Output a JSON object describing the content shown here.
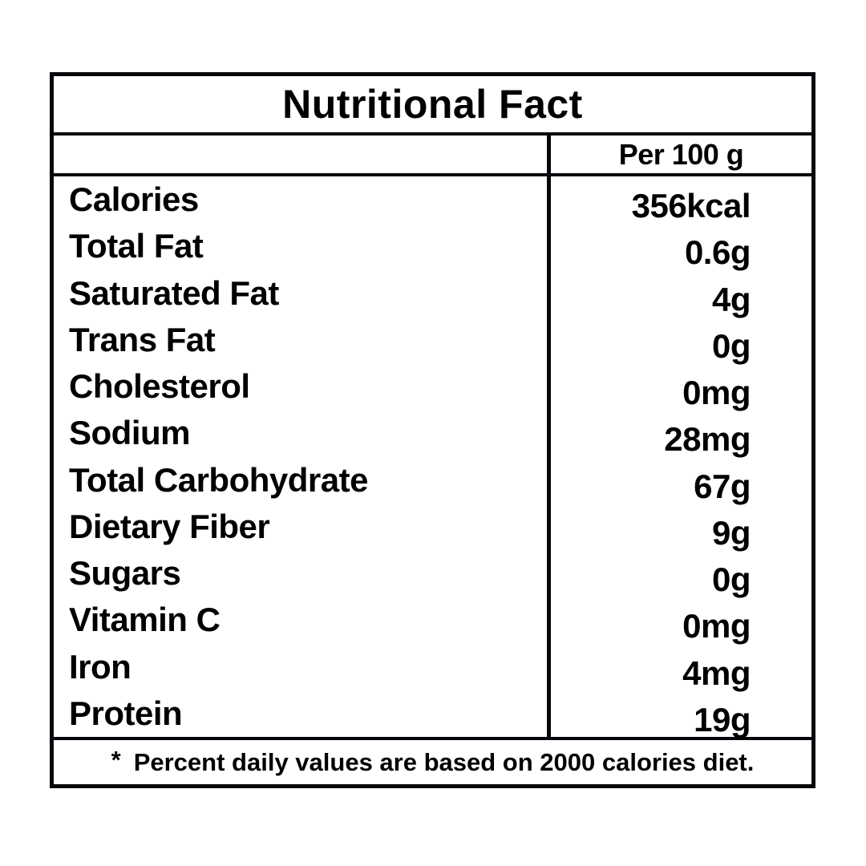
{
  "title": "Nutritional Fact",
  "header": {
    "amount_column": "Per 100 g"
  },
  "nutrients": [
    {
      "label": "Calories",
      "value": "356kcal"
    },
    {
      "label": "Total Fat",
      "value": "0.6g"
    },
    {
      "label": "Saturated Fat",
      "value": "4g"
    },
    {
      "label": "Trans Fat",
      "value": "0g"
    },
    {
      "label": "Cholesterol",
      "value": "0mg"
    },
    {
      "label": "Sodium",
      "value": "28mg"
    },
    {
      "label": "Total Carbohydrate",
      "value": "67g"
    },
    {
      "label": "Dietary Fiber",
      "value": "9g"
    },
    {
      "label": "Sugars",
      "value": "0g"
    },
    {
      "label": "Vitamin C",
      "value": "0mg"
    },
    {
      "label": "Iron",
      "value": "4mg"
    },
    {
      "label": "Protein",
      "value": "19g"
    }
  ],
  "footnote": {
    "marker": "*",
    "text": "Percent daily values are based on 2000 calories diet."
  },
  "colors": {
    "border": "#04070b",
    "text": "#000000",
    "background": "#ffffff"
  }
}
